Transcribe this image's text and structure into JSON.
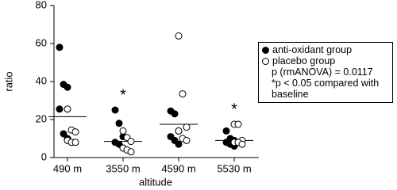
{
  "chart_data": {
    "type": "dotplot",
    "y_label": "ratio",
    "x_label": "altitude",
    "categories": [
      "490 m",
      "3550 m",
      "4590 m",
      "5530 m"
    ],
    "ylim": [
      0,
      80
    ],
    "yticks": [
      0,
      20,
      40,
      60,
      80
    ],
    "series": [
      {
        "name": "anti-oxidant group",
        "color": "#000000",
        "values": [
          [
            58,
            38.5,
            37,
            25.5,
            12.5,
            10
          ],
          [
            25,
            18,
            11,
            8,
            7,
            5
          ],
          [
            24.5,
            23,
            14,
            11,
            9,
            7
          ],
          [
            14,
            10,
            9,
            8,
            7,
            6
          ]
        ]
      },
      {
        "name": "placebo group",
        "color": "#ffffff",
        "values": [
          [
            25.5,
            14.5,
            13.5,
            9,
            8,
            8
          ],
          [
            14,
            10.5,
            8.5,
            5,
            4,
            3
          ],
          [
            64,
            33.5,
            16,
            14,
            10,
            9
          ],
          [
            17.5,
            17.5,
            9,
            8,
            8,
            7
          ]
        ]
      }
    ],
    "means": [
      21.5,
      8.5,
      17.5,
      9
    ],
    "notes": [
      "p (rmANOVA) = 0.0117",
      "*p < 0.05 compared with baseline"
    ],
    "annotations": [
      {
        "text": "*",
        "category": 1
      },
      {
        "text": "*",
        "category": 3
      }
    ]
  }
}
